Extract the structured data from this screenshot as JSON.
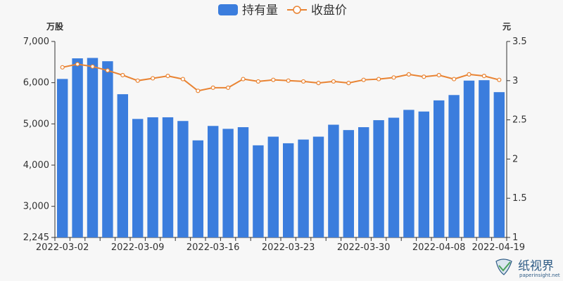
{
  "chart_data": {
    "type": "bar+line",
    "legend": {
      "position": "top-center",
      "items": [
        {
          "name": "持有量",
          "type": "bar",
          "color": "#3b7ddd"
        },
        {
          "name": "收盘价",
          "type": "line",
          "color": "#e98332"
        }
      ]
    },
    "y_left": {
      "unit": "万股",
      "min": 2245,
      "max": 7000,
      "ticks": [
        "2,245",
        "3,000",
        "4,000",
        "5,000",
        "6,000",
        "7,000"
      ],
      "tick_values": [
        2245,
        3000,
        4000,
        5000,
        6000,
        7000
      ]
    },
    "y_right": {
      "unit": "元",
      "min": 1,
      "max": 3.5,
      "ticks": [
        "1",
        "1.5",
        "2",
        "2.5",
        "3",
        "3.5"
      ],
      "tick_values": [
        1,
        1.5,
        2,
        2.5,
        3,
        3.5
      ]
    },
    "x_labels": [
      {
        "index": 0,
        "label": "2022-03-02"
      },
      {
        "index": 5,
        "label": "2022-03-09"
      },
      {
        "index": 10,
        "label": "2022-03-16"
      },
      {
        "index": 15,
        "label": "2022-03-23"
      },
      {
        "index": 20,
        "label": "2022-03-30"
      },
      {
        "index": 25,
        "label": "2022-04-08"
      },
      {
        "index": 29,
        "label": "2022-04-19"
      }
    ],
    "holdings": [
      6090,
      6590,
      6600,
      6520,
      5720,
      5120,
      5160,
      5160,
      5070,
      4600,
      4950,
      4880,
      4920,
      4480,
      4690,
      4530,
      4620,
      4690,
      4980,
      4850,
      4920,
      5090,
      5150,
      5340,
      5300,
      5570,
      5700,
      6050,
      6060,
      5770
    ],
    "close_price": [
      3.17,
      3.21,
      3.18,
      3.13,
      3.07,
      3.0,
      3.03,
      3.06,
      3.02,
      2.87,
      2.91,
      2.91,
      3.02,
      2.99,
      3.01,
      3.0,
      2.99,
      2.97,
      2.99,
      2.97,
      3.01,
      3.02,
      3.04,
      3.08,
      3.05,
      3.07,
      3.02,
      3.08,
      3.06,
      3.01
    ],
    "grid": false
  },
  "watermark": {
    "brand": "纸视界",
    "url": "paperinsight.net"
  }
}
